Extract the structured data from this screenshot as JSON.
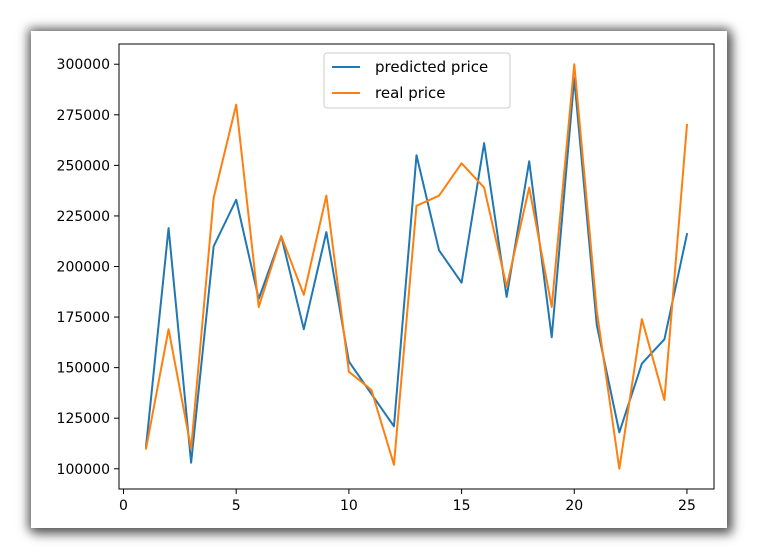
{
  "chart_data": {
    "type": "line",
    "title": "",
    "xlabel": "",
    "ylabel": "",
    "xlim": [
      -0.2,
      26.2
    ],
    "ylim": [
      90000,
      310000
    ],
    "x_ticks": [
      0,
      5,
      10,
      15,
      20,
      25
    ],
    "x_tick_labels": [
      "0",
      "5",
      "10",
      "15",
      "20",
      "25"
    ],
    "y_ticks": [
      100000,
      125000,
      150000,
      175000,
      200000,
      225000,
      250000,
      275000,
      300000
    ],
    "y_tick_labels": [
      "100000",
      "125000",
      "150000",
      "175000",
      "200000",
      "225000",
      "250000",
      "275000",
      "300000"
    ],
    "grid": false,
    "legend_position": "upper-center",
    "x": [
      1,
      2,
      3,
      4,
      5,
      6,
      7,
      8,
      9,
      10,
      11,
      12,
      13,
      14,
      15,
      16,
      17,
      18,
      19,
      20,
      21,
      22,
      23,
      24,
      25
    ],
    "series": [
      {
        "name": "predicted price",
        "color": "#1f77b4",
        "values": [
          111000,
          219000,
          103000,
          210000,
          233000,
          184000,
          215000,
          169000,
          217000,
          153000,
          137000,
          121000,
          255000,
          208000,
          192000,
          261000,
          185000,
          252000,
          165000,
          293000,
          171000,
          118000,
          152000,
          164000,
          216000
        ]
      },
      {
        "name": "real price",
        "color": "#ff7f0e",
        "values": [
          110000,
          169000,
          110000,
          234000,
          280000,
          180000,
          215000,
          186000,
          235000,
          148000,
          139000,
          102000,
          230000,
          235000,
          251000,
          239000,
          190000,
          239000,
          180000,
          300000,
          178000,
          100000,
          174000,
          134000,
          270000
        ]
      }
    ]
  }
}
